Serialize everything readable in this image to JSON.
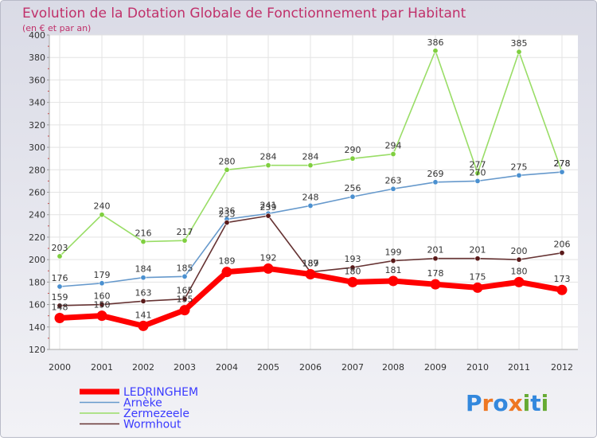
{
  "chart_data": {
    "type": "line",
    "title": "Evolution de la Dotation Globale de Fonctionnement par Habitant",
    "subtitle": "(en € et par an)",
    "xlabel": "",
    "ylabel": "",
    "categories": [
      "2000",
      "2001",
      "2002",
      "2003",
      "2004",
      "2005",
      "2006",
      "2007",
      "2008",
      "2009",
      "2010",
      "2011",
      "2012"
    ],
    "ylim": [
      120,
      400
    ],
    "yticks": [
      120,
      140,
      160,
      180,
      200,
      220,
      240,
      260,
      280,
      300,
      320,
      340,
      360,
      380,
      400
    ],
    "grid": true,
    "legend_position": "bottom-left",
    "series": [
      {
        "name": "LEDRINGHEM",
        "color": "#ff0000",
        "values": [
          148,
          150,
          141,
          155,
          189,
          192,
          187,
          180,
          181,
          178,
          175,
          180,
          173
        ]
      },
      {
        "name": "Arnèke",
        "color": "#6699cc",
        "values": [
          176,
          179,
          184,
          185,
          236,
          241,
          248,
          256,
          263,
          269,
          270,
          275,
          278
        ]
      },
      {
        "name": "Zermezeele",
        "color": "#99dd66",
        "values": [
          203,
          240,
          216,
          217,
          280,
          284,
          284,
          290,
          294,
          386,
          277,
          385,
          278
        ]
      },
      {
        "name": "Wormhout",
        "color": "#663333",
        "values": [
          159,
          160,
          163,
          165,
          233,
          239,
          189,
          193,
          199,
          201,
          201,
          200,
          206
        ]
      }
    ]
  },
  "watermark": "Proxiti"
}
